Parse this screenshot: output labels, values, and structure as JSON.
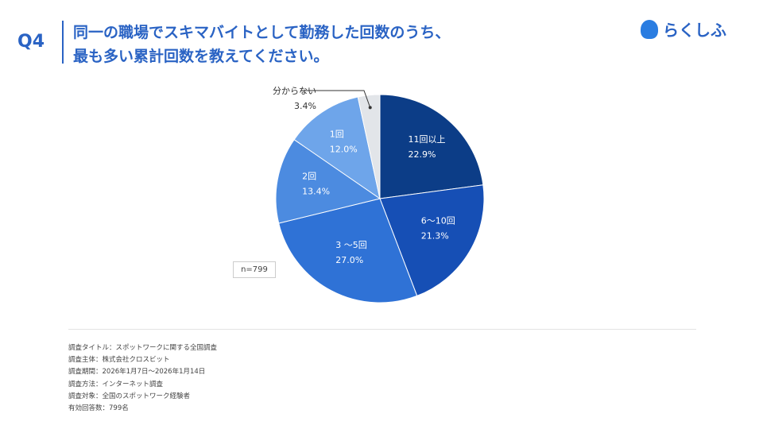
{
  "header": {
    "q": "Q4",
    "title_line1": "同一の職場でスキマバイトとして勤務した回数のうち、",
    "title_line2": "最も多い累計回数を教えてください。",
    "logo": "らくしふ"
  },
  "sample": "n=799",
  "chart_data": {
    "type": "pie",
    "start": "top",
    "direction": "clockwise",
    "categories": [
      "11回以上",
      "6〜10回",
      "3 〜5回",
      "2回",
      "1回",
      "分からない"
    ],
    "values": [
      22.9,
      21.3,
      27.0,
      13.4,
      12.0,
      3.4
    ],
    "labels": [
      "22.9%",
      "21.3%",
      "27.0%",
      "13.4%",
      "12.0%",
      "3.4%"
    ],
    "colors": [
      "#0c3d87",
      "#164fb5",
      "#2f72d6",
      "#4c8be0",
      "#6ea5ea",
      "#e2e5e9"
    ]
  },
  "footer": [
    "調査タイトル：スポットワークに関する全国調査",
    "調査主体：株式会社クロスビット",
    "調査期間：2026年1月7日〜2026年1月14日",
    "調査方法：インターネット調査",
    "調査対象：全国のスポットワーク経験者",
    "有効回答数：799名"
  ]
}
